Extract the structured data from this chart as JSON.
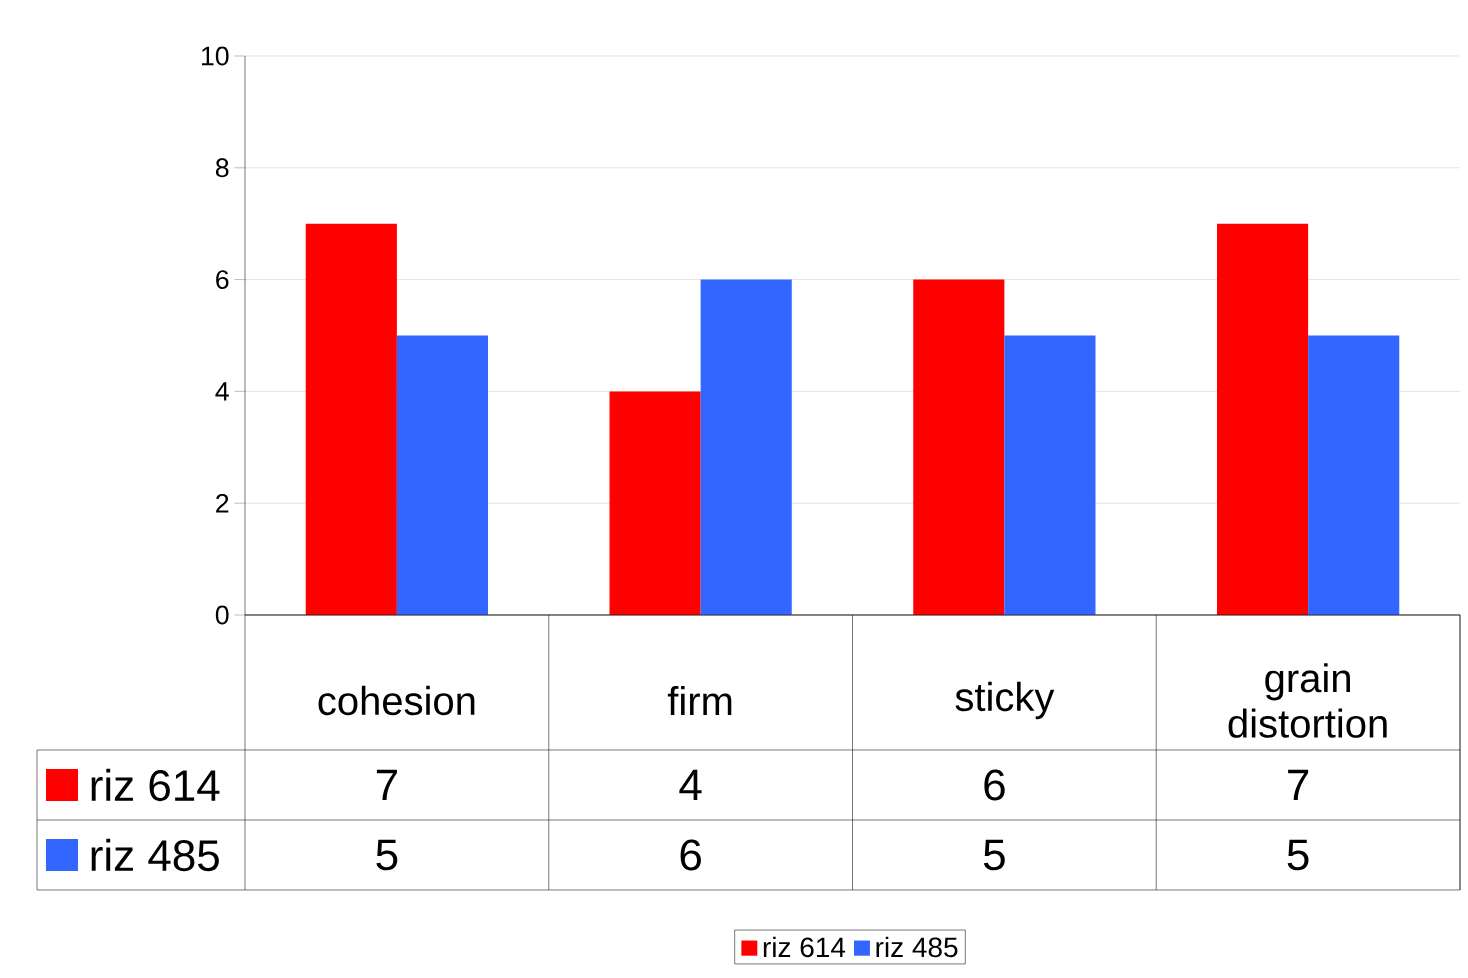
{
  "chart_data": {
    "type": "bar",
    "categories": [
      "cohesion",
      "firm",
      "sticky",
      "grain distortion"
    ],
    "series": [
      {
        "name": "riz 614",
        "color": "#ff0000",
        "values": [
          7,
          4,
          6,
          7
        ]
      },
      {
        "name": "riz 485",
        "color": "#3366ff",
        "values": [
          5,
          6,
          5,
          5
        ]
      }
    ],
    "ylim": [
      0,
      10
    ],
    "yticks": [
      0,
      2,
      4,
      6,
      8,
      10
    ],
    "grid": "y",
    "legend": "bottom",
    "data_labels": true
  }
}
